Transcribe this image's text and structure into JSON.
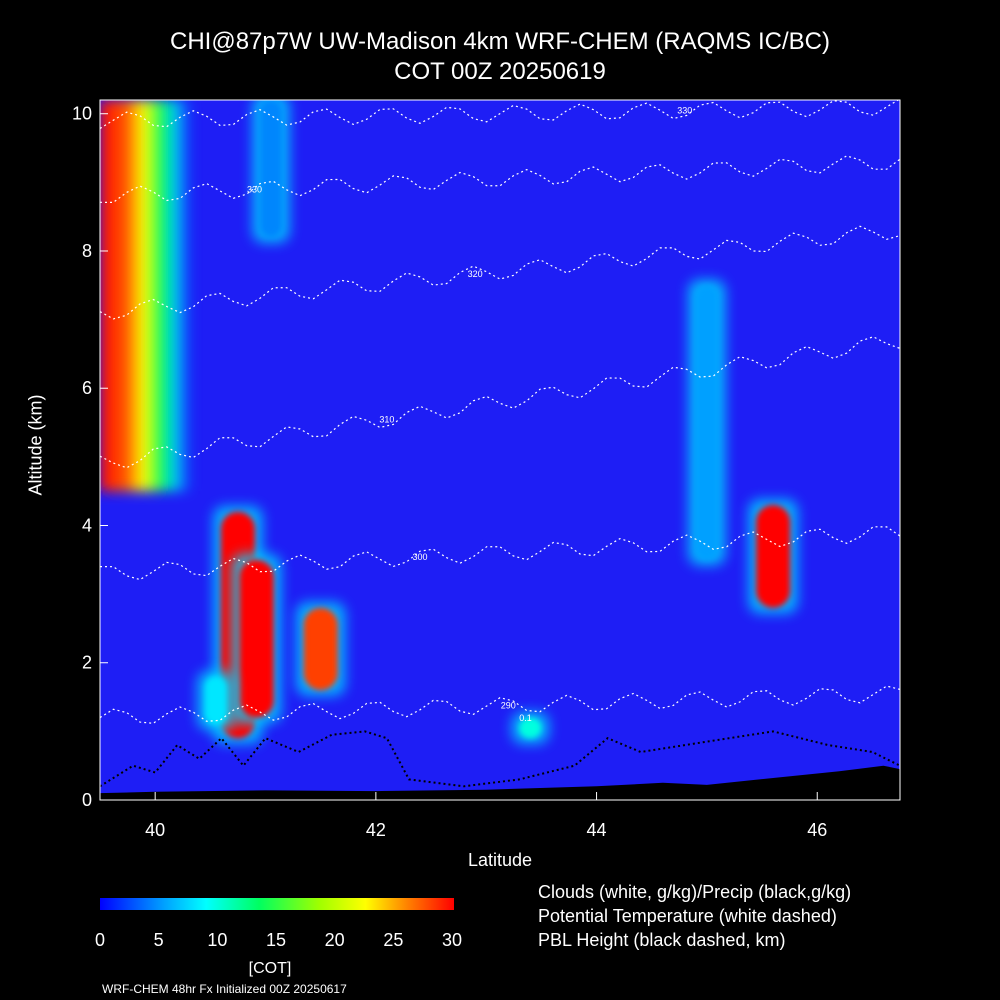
{
  "title": {
    "line1": "CHI@87p7W UW-Madison 4km WRF-CHEM (RAQMS IC/BC)",
    "line2": "COT 00Z 20250619"
  },
  "legend": {
    "clouds": "Clouds (white, g/kg)/Precip (black,g/kg)",
    "theta": "Potential Temperature (white dashed)",
    "pbl": "PBL Height (black dashed, km)"
  },
  "colorbar": {
    "ticks": [
      "0",
      "5",
      "10",
      "15",
      "20",
      "25",
      "30"
    ],
    "unit": "[COT]",
    "colors": [
      "#0000ff",
      "#00ffff",
      "#00ff60",
      "#ffff00",
      "#ff0000"
    ]
  },
  "footer": "WRF-CHEM 48hr  Fx Initialized 00Z 20250617",
  "chart_data": {
    "type": "heatmap",
    "xlabel": "Latitude",
    "ylabel": "Altitude (km)",
    "xlim": [
      39.5,
      46.75
    ],
    "ylim": [
      0,
      10.2
    ],
    "xticks": [
      "40",
      "42",
      "44",
      "46"
    ],
    "yticks": [
      "0",
      "2",
      "4",
      "6",
      "8",
      "10"
    ],
    "theta_contours": [
      {
        "label": "290",
        "alt_left": 1.2,
        "alt_right": 1.55,
        "label_lat": 43.2
      },
      {
        "label": "300",
        "alt_left": 3.3,
        "alt_right": 3.9,
        "label_lat": 42.4
      },
      {
        "label": "310",
        "alt_left": 4.9,
        "alt_right": 6.7,
        "label_lat": 42.1
      },
      {
        "label": "320",
        "alt_left": 7.1,
        "alt_right": 8.3,
        "label_lat": 42.9
      },
      {
        "label": "330",
        "alt_left": 8.8,
        "alt_right": 9.3,
        "label_lat": 40.9
      },
      {
        "label": "330",
        "alt_left": 9.9,
        "alt_right": 10.1,
        "label_lat": 44.8
      }
    ],
    "cot_cells": [
      {
        "lat": 39.65,
        "alt_bottom": 4.5,
        "alt_top": 10.2,
        "cot": 30
      },
      {
        "lat": 40.75,
        "alt_bottom": 0.9,
        "alt_top": 4.2,
        "cot": 30
      },
      {
        "lat": 40.92,
        "alt_bottom": 1.2,
        "alt_top": 3.5,
        "cot": 30
      },
      {
        "lat": 41.5,
        "alt_bottom": 1.6,
        "alt_top": 2.8,
        "cot": 28
      },
      {
        "lat": 45.6,
        "alt_bottom": 2.8,
        "alt_top": 4.3,
        "cot": 30
      },
      {
        "lat": 40.55,
        "alt_bottom": 1.1,
        "alt_top": 1.8,
        "cot": 8
      },
      {
        "lat": 43.4,
        "alt_bottom": 0.9,
        "alt_top": 1.2,
        "cot": 10
      },
      {
        "lat": 45.0,
        "alt_bottom": 3.5,
        "alt_top": 7.5,
        "cot": 5
      },
      {
        "lat": 41.05,
        "alt_bottom": 8.2,
        "alt_top": 10.2,
        "cot": 4
      }
    ],
    "cloud_labels": [
      "0.1"
    ],
    "pbl_height_km": [
      [
        39.5,
        0.2
      ],
      [
        39.8,
        0.5
      ],
      [
        40.0,
        0.4
      ],
      [
        40.2,
        0.8
      ],
      [
        40.4,
        0.6
      ],
      [
        40.6,
        0.9
      ],
      [
        40.8,
        0.5
      ],
      [
        41.0,
        0.9
      ],
      [
        41.3,
        0.7
      ],
      [
        41.6,
        0.95
      ],
      [
        41.9,
        1.0
      ],
      [
        42.1,
        0.9
      ],
      [
        42.3,
        0.3
      ],
      [
        42.8,
        0.2
      ],
      [
        43.3,
        0.3
      ],
      [
        43.8,
        0.5
      ],
      [
        44.1,
        0.9
      ],
      [
        44.4,
        0.7
      ],
      [
        44.8,
        0.8
      ],
      [
        45.2,
        0.9
      ],
      [
        45.6,
        1.0
      ],
      [
        46.1,
        0.8
      ],
      [
        46.5,
        0.7
      ],
      [
        46.75,
        0.5
      ]
    ],
    "terrain_km": [
      [
        39.5,
        0.1
      ],
      [
        40.0,
        0.12
      ],
      [
        41.0,
        0.14
      ],
      [
        42.0,
        0.13
      ],
      [
        43.0,
        0.15
      ],
      [
        44.0,
        0.2
      ],
      [
        44.6,
        0.25
      ],
      [
        45.0,
        0.22
      ],
      [
        45.6,
        0.32
      ],
      [
        46.2,
        0.42
      ],
      [
        46.6,
        0.5
      ],
      [
        46.75,
        0.45
      ]
    ]
  }
}
